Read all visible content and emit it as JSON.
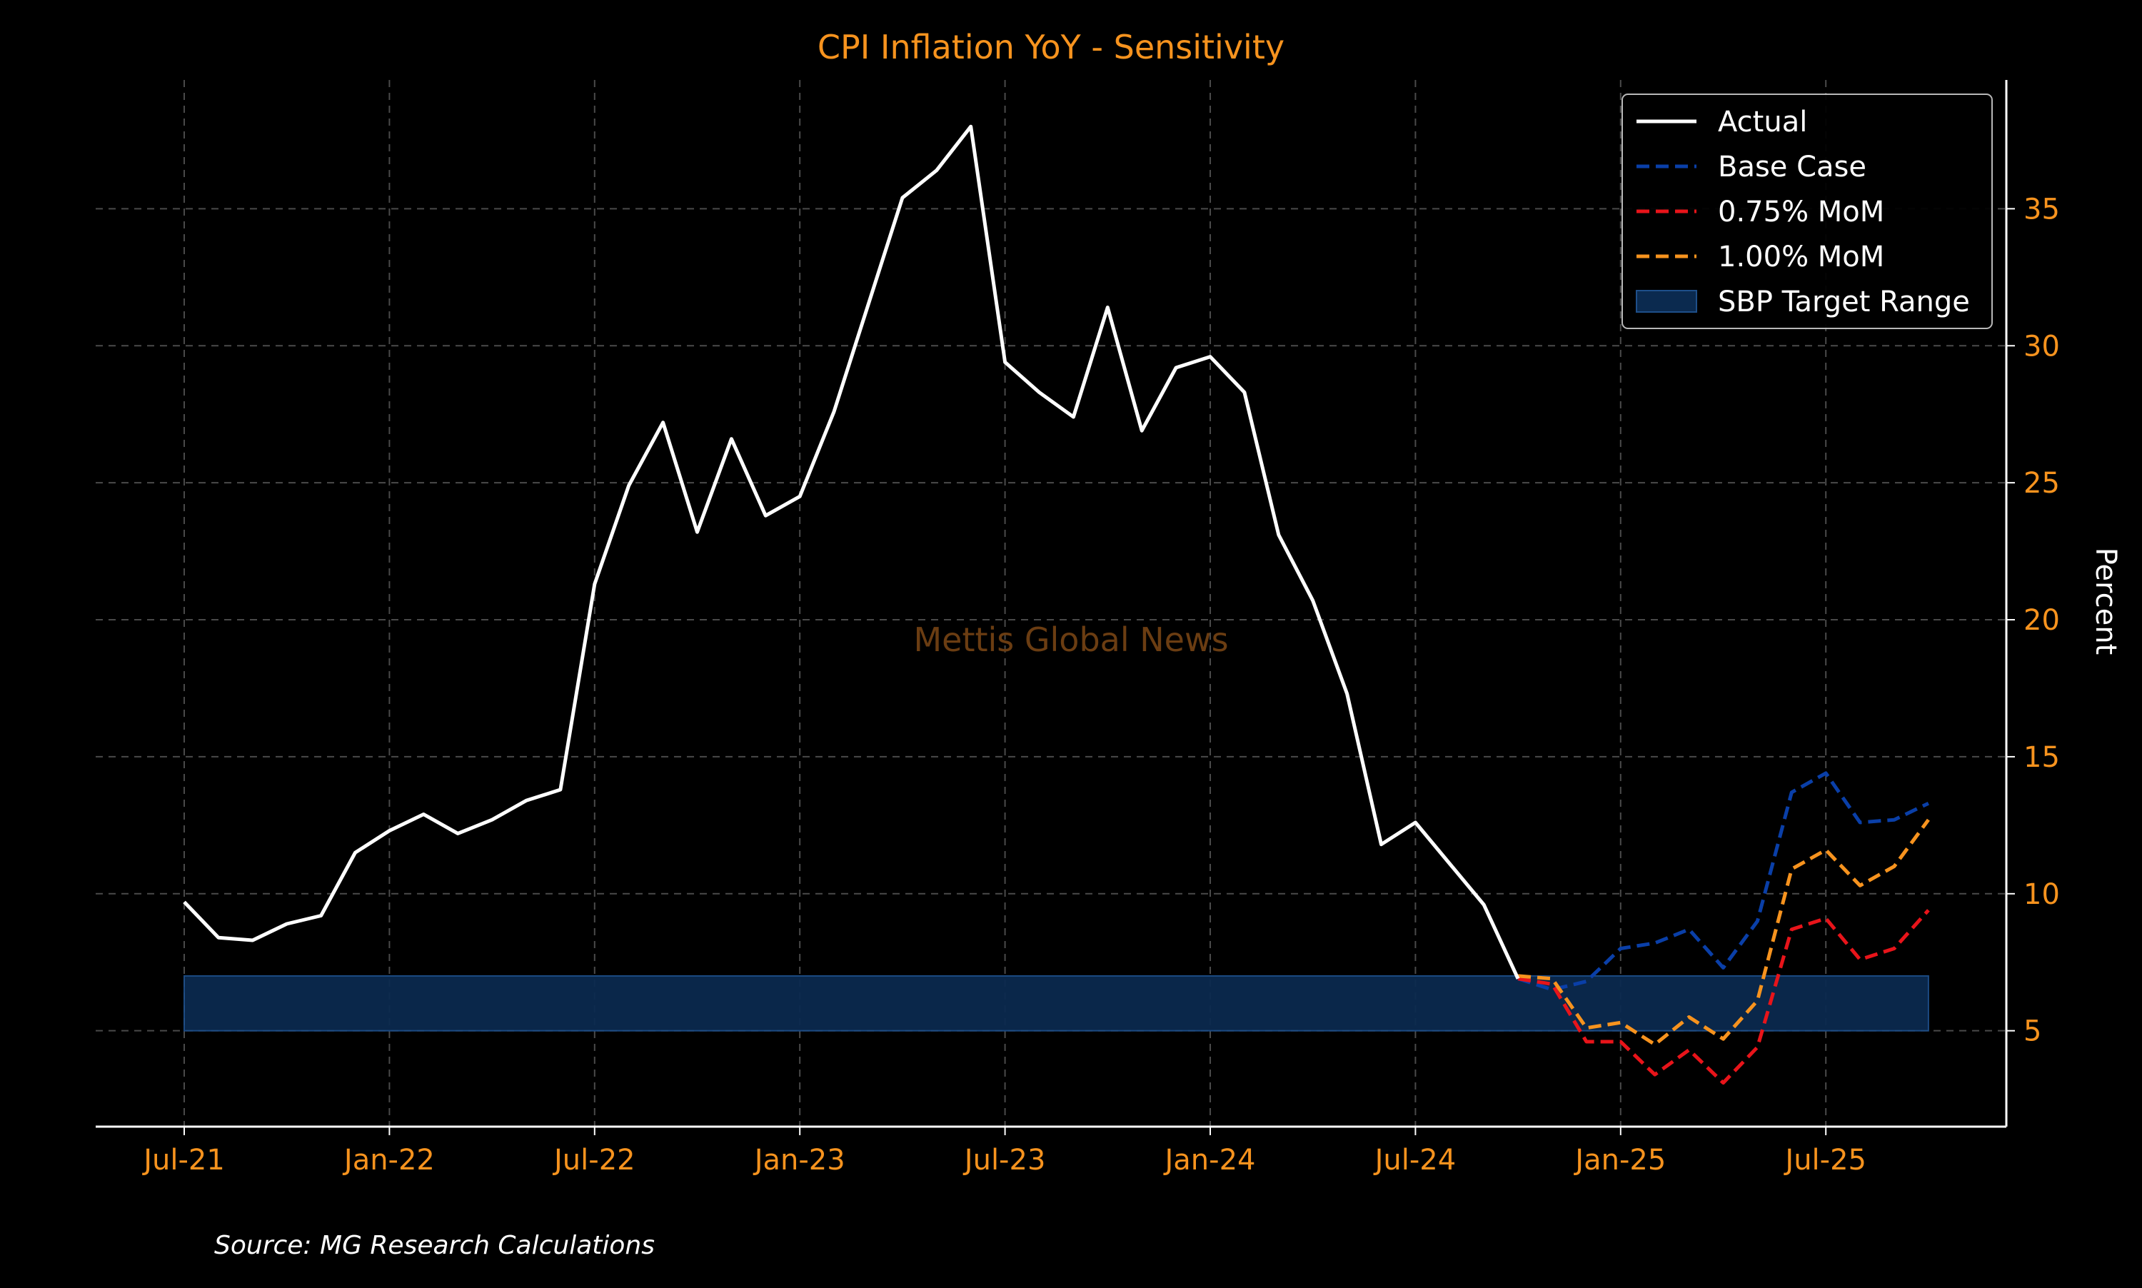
{
  "colors": {
    "background": "#000000",
    "accent": "#f7931e",
    "actual": "#ffffff",
    "base_case": "#0a3fa8",
    "mom_075": "#e8141a",
    "mom_100": "#f7931e",
    "target_fill": "#0b2a4f",
    "grid": "#4a4a4a",
    "watermark": "#6b3d12",
    "source_text": "#ffffff"
  },
  "watermark": "Mettis Global News",
  "source": "Source: MG Research Calculations",
  "chart_data": {
    "type": "line",
    "title": "CPI Inflation YoY - Sensitivity",
    "xlabel": "",
    "ylabel": "Percent",
    "x_range": [
      "2021-07",
      "2025-11"
    ],
    "ylim": [
      1.5,
      39.7
    ],
    "y_ticks": [
      5,
      10,
      15,
      20,
      25,
      30,
      35
    ],
    "x_ticks": [
      {
        "date": "2021-07",
        "label": "Jul-21"
      },
      {
        "date": "2022-01",
        "label": "Jan-22"
      },
      {
        "date": "2022-07",
        "label": "Jul-22"
      },
      {
        "date": "2023-01",
        "label": "Jan-23"
      },
      {
        "date": "2023-07",
        "label": "Jul-23"
      },
      {
        "date": "2024-01",
        "label": "Jan-24"
      },
      {
        "date": "2024-07",
        "label": "Jul-24"
      },
      {
        "date": "2025-01",
        "label": "Jan-25"
      },
      {
        "date": "2025-07",
        "label": "Jul-25"
      }
    ],
    "grid": true,
    "y_axis_side": "right",
    "legend_position": "top-right",
    "series": [
      {
        "name": "Actual",
        "style": "solid",
        "x": [
          "2021-07",
          "2021-08",
          "2021-09",
          "2021-10",
          "2021-11",
          "2021-12",
          "2022-01",
          "2022-02",
          "2022-03",
          "2022-04",
          "2022-05",
          "2022-06",
          "2022-07",
          "2022-08",
          "2022-09",
          "2022-10",
          "2022-11",
          "2022-12",
          "2023-01",
          "2023-02",
          "2023-03",
          "2023-04",
          "2023-05",
          "2023-06",
          "2023-07",
          "2023-08",
          "2023-09",
          "2023-10",
          "2023-11",
          "2023-12",
          "2024-01",
          "2024-02",
          "2024-03",
          "2024-04",
          "2024-05",
          "2024-06",
          "2024-07",
          "2024-08",
          "2024-09",
          "2024-10"
        ],
        "values": [
          9.7,
          8.4,
          8.3,
          8.9,
          9.2,
          11.5,
          12.3,
          12.9,
          12.2,
          12.7,
          13.4,
          13.8,
          21.3,
          24.9,
          27.2,
          23.2,
          26.6,
          23.8,
          24.5,
          27.6,
          31.5,
          35.4,
          36.4,
          38.0,
          29.4,
          28.3,
          27.4,
          31.4,
          26.9,
          29.2,
          29.6,
          28.3,
          23.1,
          20.7,
          17.3,
          11.8,
          12.6,
          11.1,
          9.6,
          6.9
        ]
      },
      {
        "name": "Base Case",
        "style": "dashed",
        "x": [
          "2024-10",
          "2024-11",
          "2024-12",
          "2025-01",
          "2025-02",
          "2025-03",
          "2025-04",
          "2025-05",
          "2025-06",
          "2025-07",
          "2025-08",
          "2025-09",
          "2025-10"
        ],
        "values": [
          6.9,
          6.5,
          6.8,
          8.0,
          8.2,
          8.7,
          7.3,
          9.0,
          13.7,
          14.4,
          12.6,
          12.7,
          13.3
        ]
      },
      {
        "name": "0.75% MoM",
        "style": "dashed",
        "x": [
          "2024-10",
          "2024-11",
          "2024-12",
          "2025-01",
          "2025-02",
          "2025-03",
          "2025-04",
          "2025-05",
          "2025-06",
          "2025-07",
          "2025-08",
          "2025-09",
          "2025-10"
        ],
        "values": [
          6.9,
          6.7,
          4.6,
          4.6,
          3.4,
          4.3,
          3.1,
          4.4,
          8.7,
          9.1,
          7.6,
          8.0,
          9.4
        ]
      },
      {
        "name": "1.00% MoM",
        "style": "dashed",
        "x": [
          "2024-10",
          "2024-11",
          "2024-12",
          "2025-01",
          "2025-02",
          "2025-03",
          "2025-04",
          "2025-05",
          "2025-06",
          "2025-07",
          "2025-08",
          "2025-09",
          "2025-10"
        ],
        "values": [
          7.0,
          6.9,
          5.1,
          5.3,
          4.5,
          5.5,
          4.7,
          6.1,
          10.9,
          11.6,
          10.3,
          11.0,
          12.7
        ]
      }
    ],
    "bands": [
      {
        "name": "SBP Target Range",
        "y_from": 5,
        "y_to": 7,
        "x_from": "2021-07",
        "x_to": "2025-10"
      }
    ]
  }
}
